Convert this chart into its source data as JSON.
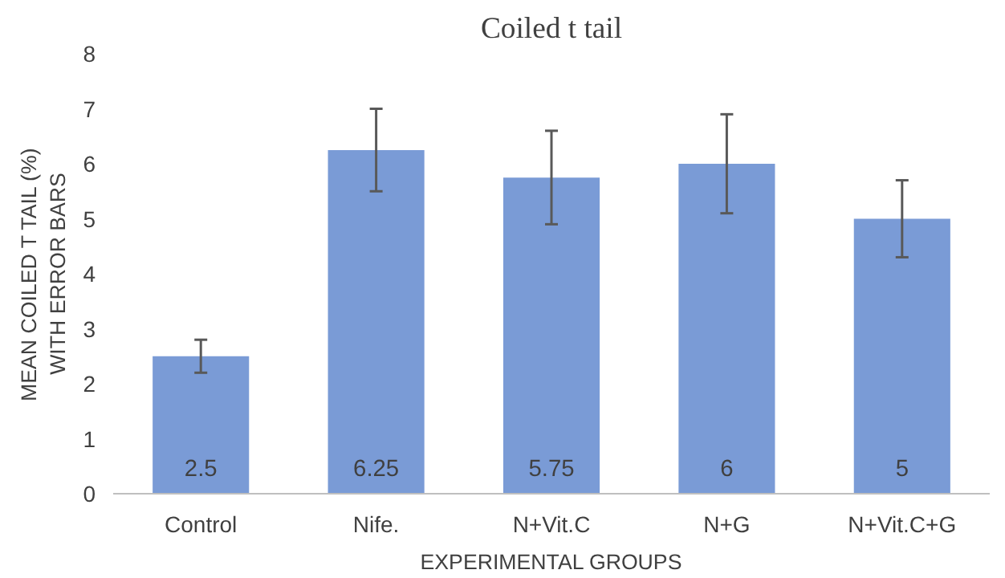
{
  "chart_data": {
    "type": "bar",
    "title": "Coiled t tail",
    "xlabel": "EXPERIMENTAL GROUPS",
    "ylabel": "MEAN COILED T TAIL (%)\nWITH ERROR BARS",
    "categories": [
      "Control",
      "Nife.",
      "N+Vit.C",
      "N+G",
      "N+Vit.C+G"
    ],
    "values": [
      2.5,
      6.25,
      5.75,
      6,
      5
    ],
    "color": "#7a9bd6",
    "errors": [
      0.3,
      0.75,
      0.85,
      0.9,
      0.7
    ],
    "data_labels": true,
    "ylim": [
      0,
      8
    ],
    "yticks": [
      0,
      1,
      2,
      3,
      4,
      5,
      6,
      7,
      8
    ],
    "grid": false
  }
}
